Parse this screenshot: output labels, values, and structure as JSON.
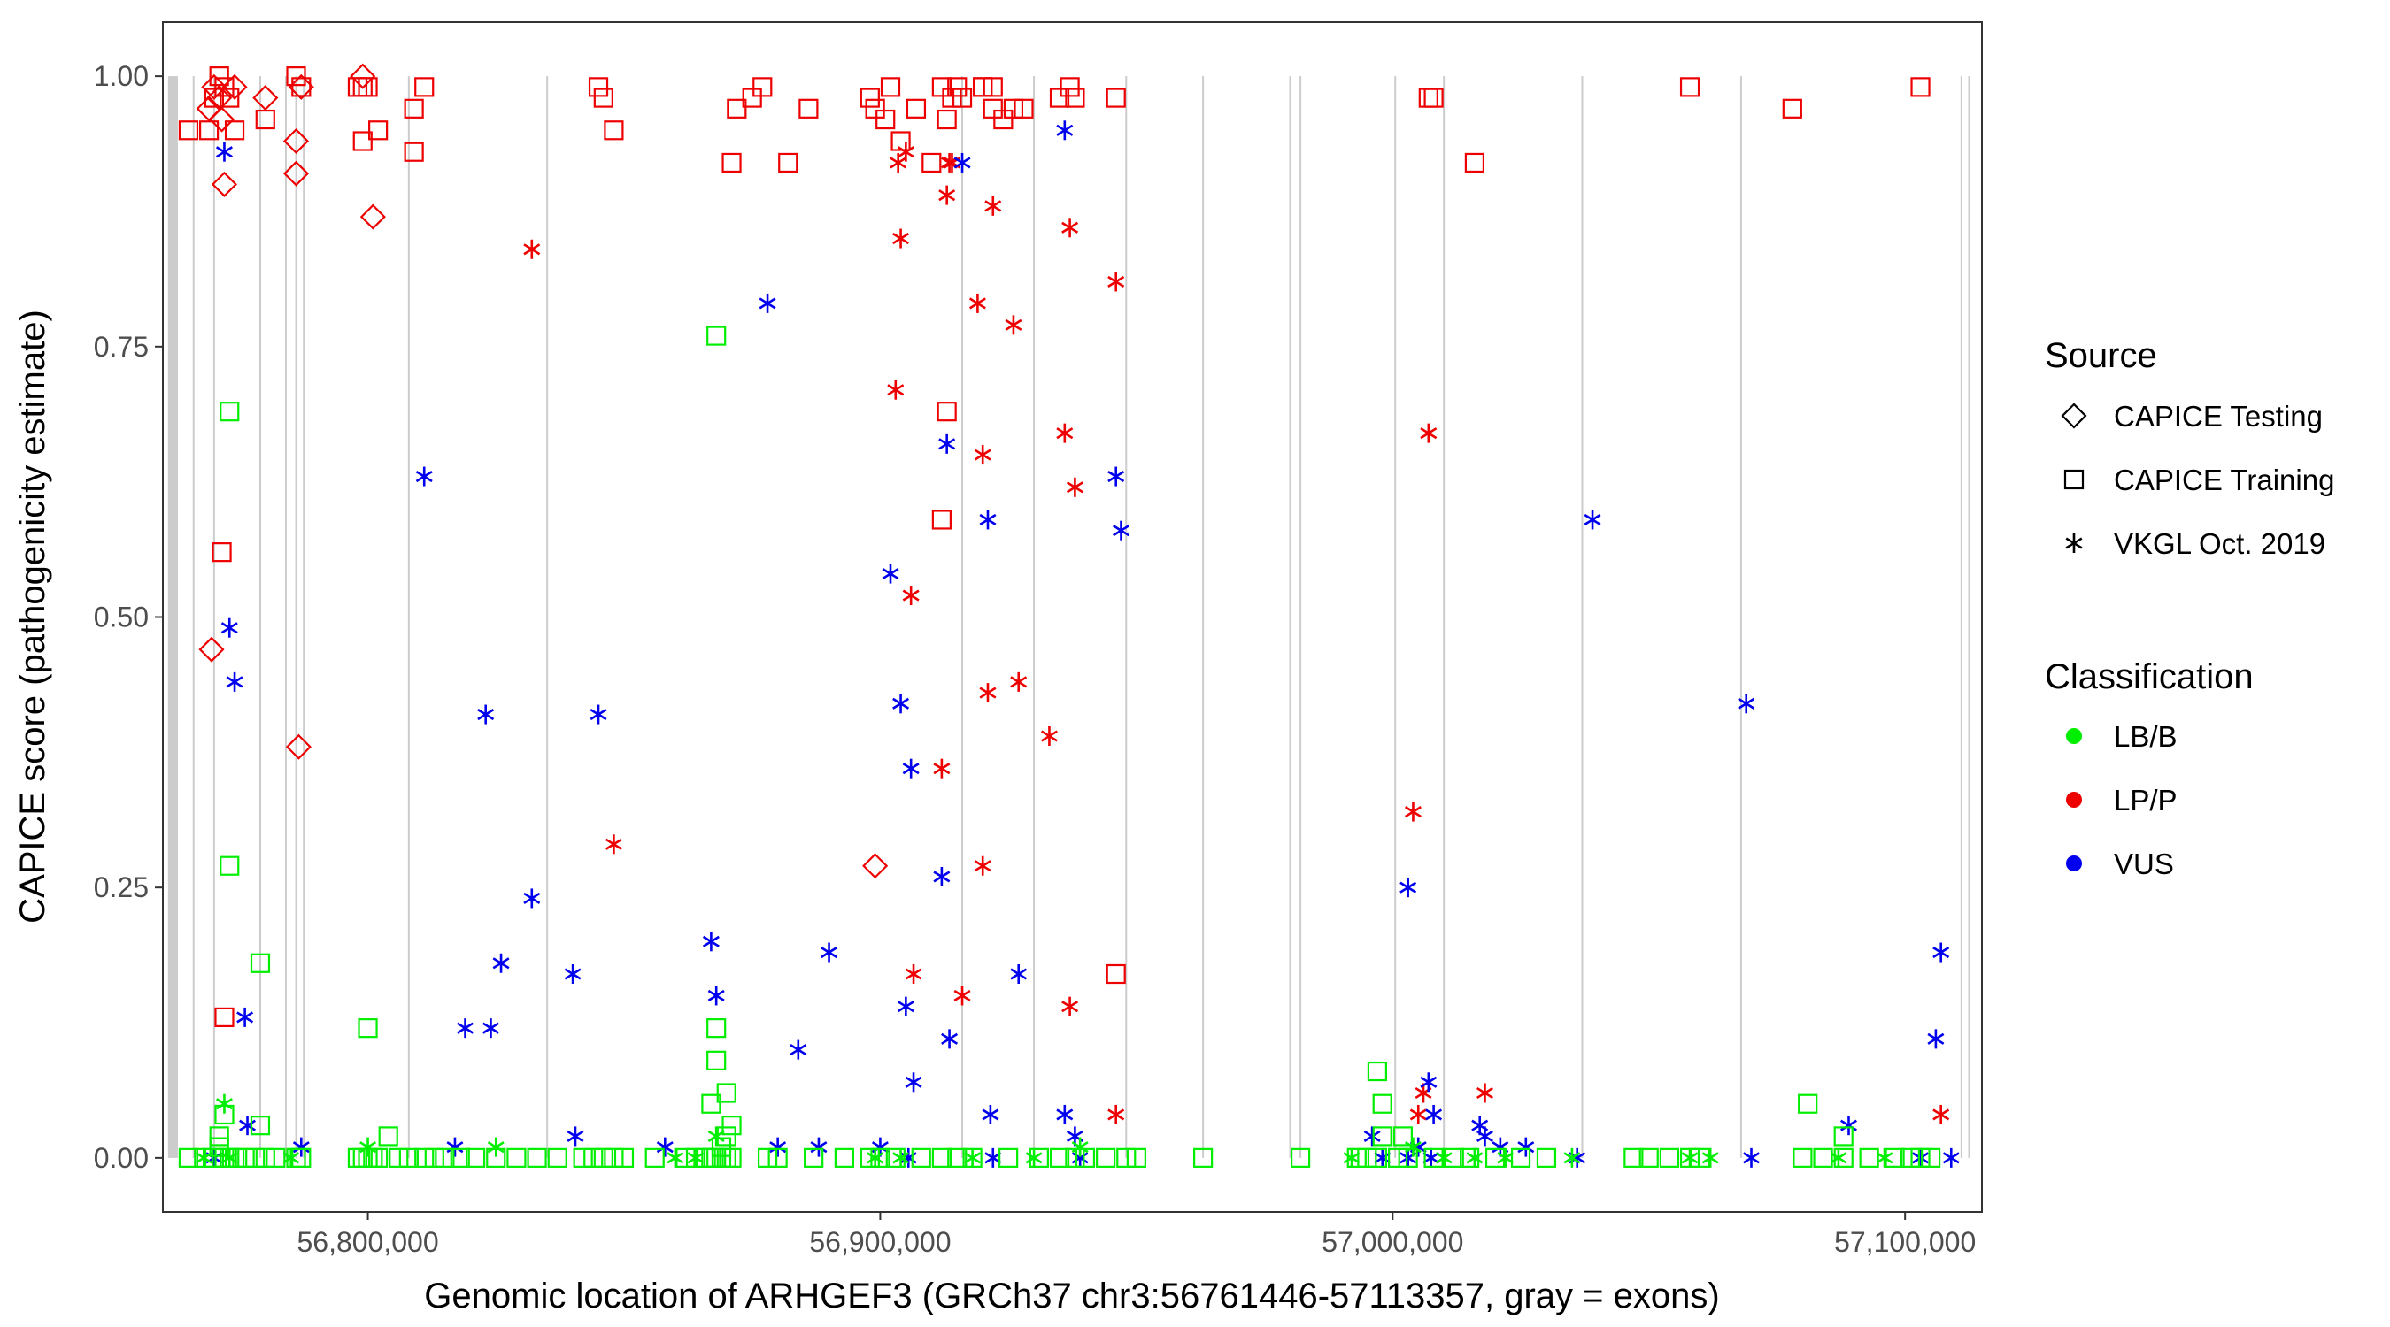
{
  "chart_data": {
    "type": "scatter",
    "title": "",
    "xlabel": "Genomic location of ARHGEF3 (GRCh37 chr3:56761446-57113357, gray = exons)",
    "ylabel": "CAPICE score (pathogenicity estimate)",
    "xlim": [
      56760000,
      57115000
    ],
    "ylim": [
      -0.05,
      1.05
    ],
    "x_ticks": [
      56800000,
      56900000,
      57000000,
      57100000
    ],
    "x_tick_labels": [
      "56,800,000",
      "56,900,000",
      "57,000,000",
      "57,100,000"
    ],
    "y_ticks": [
      0,
      0.25,
      0.5,
      0.75,
      1.0
    ],
    "y_tick_labels": [
      "0.00",
      "0.25",
      "0.50",
      "0.75",
      "1.00"
    ],
    "exons": [
      56761446,
      56762000,
      56762500,
      56766000,
      56770000,
      56779000,
      56784000,
      56786000,
      56787500,
      56808000,
      56835000,
      56916000,
      56930000,
      56948000,
      56963000,
      56980000,
      56982000,
      57000500,
      57010000,
      57037000,
      57068000,
      57111000,
      57112500
    ],
    "legend": {
      "source_title": "Source",
      "source_items": [
        {
          "label": "CAPICE Testing",
          "shape": "diamond"
        },
        {
          "label": "CAPICE Training",
          "shape": "square"
        },
        {
          "label": "VKGL Oct. 2019",
          "shape": "asterisk"
        }
      ],
      "class_title": "Classification",
      "class_items": [
        {
          "label": "LB/B",
          "color": "#00EE00"
        },
        {
          "label": "LP/P",
          "color": "#EE0000"
        },
        {
          "label": "VUS",
          "color": "#0000EE"
        }
      ]
    },
    "colors": {
      "LB/B": "#00EE00",
      "LP/P": "#EE0000",
      "VUS": "#0000EE"
    },
    "series": [
      {
        "name": "CAPICE Training / LP/P",
        "shape": "square",
        "class": "LP/P",
        "x": [
          56765000,
          56769000,
          56770000,
          56771000,
          56772000,
          56773000,
          56774000,
          56780000,
          56786000,
          56787000,
          56798000,
          56799000,
          56800000,
          56802000,
          56809000,
          56811000,
          56845000,
          56846000,
          56848000,
          56871000,
          56872000,
          56875000,
          56877000,
          56882000,
          56886000,
          56898000,
          56899000,
          56901000,
          56902000,
          56904000,
          56907000,
          56910000,
          56912000,
          56913000,
          56914000,
          56915000,
          56916000,
          56920000,
          56922000,
          56924000,
          56926000,
          56928000,
          56935000,
          56937000,
          56938000,
          56946000,
          57007000,
          57008000,
          57016000,
          57058000,
          57078000,
          57103000,
          56771500,
          56799000,
          56809000,
          56913000,
          56912000,
          56946000,
          56772000,
          56920000,
          56922000
        ],
        "y": [
          0.95,
          0.95,
          0.98,
          1.0,
          0.99,
          0.98,
          0.95,
          0.96,
          1.0,
          0.99,
          0.99,
          0.99,
          0.99,
          0.95,
          0.97,
          0.99,
          0.99,
          0.98,
          0.95,
          0.92,
          0.97,
          0.98,
          0.99,
          0.92,
          0.97,
          0.98,
          0.97,
          0.96,
          0.99,
          0.94,
          0.97,
          0.92,
          0.99,
          0.96,
          0.98,
          0.99,
          0.98,
          0.99,
          0.97,
          0.96,
          0.97,
          0.97,
          0.98,
          0.99,
          0.98,
          0.98,
          0.98,
          0.98,
          0.92,
          0.99,
          0.97,
          0.99,
          0.56,
          0.94,
          0.93,
          0.69,
          0.59,
          0.17,
          0.13,
          0.99,
          0.99
        ]
      },
      {
        "name": "CAPICE Testing / LP/P",
        "shape": "diamond",
        "class": "LP/P",
        "x": [
          56769000,
          56770000,
          56771000,
          56772000,
          56774000,
          56780000,
          56786000,
          56787000,
          56799000,
          56801000,
          56769500,
          56786500,
          56899000,
          56771500,
          56786000
        ],
        "y": [
          0.97,
          0.99,
          0.98,
          0.9,
          0.99,
          0.98,
          0.94,
          0.99,
          1.0,
          0.87,
          0.47,
          0.38,
          0.27,
          0.96,
          0.91
        ]
      },
      {
        "name": "VKGL / LP/P",
        "shape": "asterisk",
        "class": "LP/P",
        "x": [
          56832000,
          56848000,
          56903000,
          56904000,
          56905000,
          56906000,
          56912000,
          56913000,
          56914000,
          56919000,
          56920000,
          56921000,
          56922000,
          56926000,
          56933000,
          56936000,
          56937000,
          56938000,
          56946000,
          57004000,
          57007000,
          57018000,
          57107000,
          56903500,
          56906500,
          56913500,
          56916000,
          56920000,
          56927000,
          56937000,
          56946000,
          57005000,
          57006000
        ],
        "y": [
          0.84,
          0.29,
          0.71,
          0.85,
          0.93,
          0.52,
          0.36,
          0.89,
          0.92,
          0.79,
          0.65,
          0.43,
          0.88,
          0.77,
          0.39,
          0.67,
          0.86,
          0.62,
          0.81,
          0.32,
          0.67,
          0.06,
          0.04,
          0.92,
          0.17,
          0.92,
          0.15,
          0.27,
          0.44,
          0.14,
          0.04,
          0.04,
          0.06
        ]
      },
      {
        "name": "VKGL / VUS",
        "shape": "asterisk",
        "class": "VUS",
        "x": [
          56772000,
          56773000,
          56774000,
          56776000,
          56811000,
          56823000,
          56824000,
          56826000,
          56832000,
          56840000,
          56845000,
          56878000,
          56884000,
          56890000,
          56902000,
          56904000,
          56905000,
          56906000,
          56912000,
          56913000,
          56916000,
          56921000,
          56927000,
          56936000,
          56946000,
          56947000,
          57003000,
          57007000,
          57039000,
          57069000,
          57107000,
          57106000,
          56867000,
          56868000,
          56819000,
          56906500,
          56913500,
          56921500,
          56936000,
          56996000,
          57005000,
          57008000,
          57017000,
          56776500,
          56787000,
          56817000,
          56840500,
          56858000,
          56880000,
          56888000,
          56900000,
          56905500,
          56922000,
          56938000,
          56939000,
          56998000,
          57003000,
          57007500,
          57018000,
          57021000,
          57026000,
          57036000,
          57070000,
          57089000,
          57103000,
          57109000,
          56770000
        ],
        "y": [
          0.93,
          0.49,
          0.44,
          0.13,
          0.63,
          0.41,
          0.12,
          0.18,
          0.24,
          0.17,
          0.41,
          0.79,
          0.1,
          0.19,
          0.54,
          0.42,
          0.14,
          0.36,
          0.26,
          0.66,
          0.92,
          0.59,
          0.17,
          0.95,
          0.63,
          0.58,
          0.25,
          0.07,
          0.59,
          0.42,
          0.19,
          0.11,
          0.2,
          0.15,
          0.12,
          0.07,
          0.11,
          0.04,
          0.04,
          0.02,
          0.01,
          0.04,
          0.03,
          0.03,
          0.01,
          0.01,
          0.02,
          0.01,
          0.01,
          0.01,
          0.01,
          0.0,
          0.0,
          0.02,
          0.0,
          0.0,
          0.0,
          0.0,
          0.02,
          0.01,
          0.01,
          0.0,
          0.0,
          0.03,
          0.0,
          0.0,
          0.0
        ]
      },
      {
        "name": "CAPICE Training / LB/B",
        "shape": "square",
        "class": "LB/B",
        "x": [
          56765000,
          56768000,
          56770000,
          56771000,
          56772000,
          56773000,
          56774000,
          56776000,
          56778000,
          56780000,
          56782000,
          56786000,
          56787000,
          56798000,
          56799000,
          56800000,
          56801000,
          56802000,
          56806000,
          56808000,
          56811000,
          56813000,
          56815000,
          56818000,
          56821000,
          56825000,
          56829000,
          56833000,
          56837000,
          56842000,
          56844000,
          56846000,
          56848000,
          56850000,
          56856000,
          56862000,
          56864000,
          56866000,
          56867000,
          56868000,
          56869000,
          56870000,
          56871000,
          56878000,
          56880000,
          56887000,
          56893000,
          56898000,
          56900000,
          56903000,
          56908000,
          56912000,
          56915000,
          56918000,
          56925000,
          56931000,
          56935000,
          56938000,
          56940000,
          56944000,
          56948000,
          56950000,
          56963000,
          56982000,
          56993000,
          56995000,
          56997000,
          57001000,
          57003000,
          57008000,
          57012000,
          57015000,
          57020000,
          57025000,
          57030000,
          57047000,
          57050000,
          57054000,
          57058000,
          57060000,
          57080000,
          57084000,
          57088000,
          57093000,
          57098000,
          57101000,
          57103000,
          57105000,
          56773000,
          56773000,
          56779000,
          56800000,
          56868000,
          56868000,
          56870000,
          56871000,
          56868000,
          56867000,
          56997000,
          56998000,
          57002000,
          57081000,
          57088000,
          56771000,
          56772000,
          56804000,
          56869000,
          56870000,
          56779000,
          56998000
        ],
        "y": [
          0.0,
          0.0,
          0.0,
          0.01,
          0.0,
          0.0,
          0.0,
          0.0,
          0.0,
          0.0,
          0.0,
          0.0,
          0.0,
          0.0,
          0.0,
          0.0,
          0.0,
          0.0,
          0.0,
          0.0,
          0.0,
          0.0,
          0.0,
          0.0,
          0.0,
          0.0,
          0.0,
          0.0,
          0.0,
          0.0,
          0.0,
          0.0,
          0.0,
          0.0,
          0.0,
          0.0,
          0.0,
          0.0,
          0.0,
          0.0,
          0.0,
          0.0,
          0.0,
          0.0,
          0.0,
          0.0,
          0.0,
          0.0,
          0.0,
          0.0,
          0.0,
          0.0,
          0.0,
          0.0,
          0.0,
          0.0,
          0.0,
          0.0,
          0.0,
          0.0,
          0.0,
          0.0,
          0.0,
          0.0,
          0.0,
          0.0,
          0.0,
          0.0,
          0.0,
          0.0,
          0.0,
          0.0,
          0.0,
          0.0,
          0.0,
          0.0,
          0.0,
          0.0,
          0.0,
          0.0,
          0.0,
          0.0,
          0.0,
          0.0,
          0.0,
          0.0,
          0.0,
          0.0,
          0.69,
          0.27,
          0.18,
          0.12,
          0.76,
          0.12,
          0.06,
          0.03,
          0.09,
          0.05,
          0.08,
          0.05,
          0.02,
          0.05,
          0.02,
          0.02,
          0.04,
          0.02,
          0.01,
          0.02,
          0.03,
          0.02
        ]
      },
      {
        "name": "VKGL / LB/B",
        "shape": "asterisk",
        "class": "LB/B",
        "x": [
          56768000,
          56772000,
          56773000,
          56785000,
          56800000,
          56825000,
          56860000,
          56864000,
          56868000,
          56899000,
          56904000,
          56918000,
          56930000,
          56939000,
          56992000,
          57004000,
          57010000,
          57016000,
          57022000,
          57035000,
          57058000,
          57062000,
          57087000,
          57096000
        ],
        "y": [
          0.0,
          0.05,
          0.0,
          0.0,
          0.01,
          0.01,
          0.0,
          0.0,
          0.02,
          0.0,
          0.0,
          0.0,
          0.0,
          0.01,
          0.0,
          0.01,
          0.0,
          0.0,
          0.0,
          0.0,
          0.0,
          0.0,
          0.0,
          0.0
        ]
      }
    ]
  }
}
